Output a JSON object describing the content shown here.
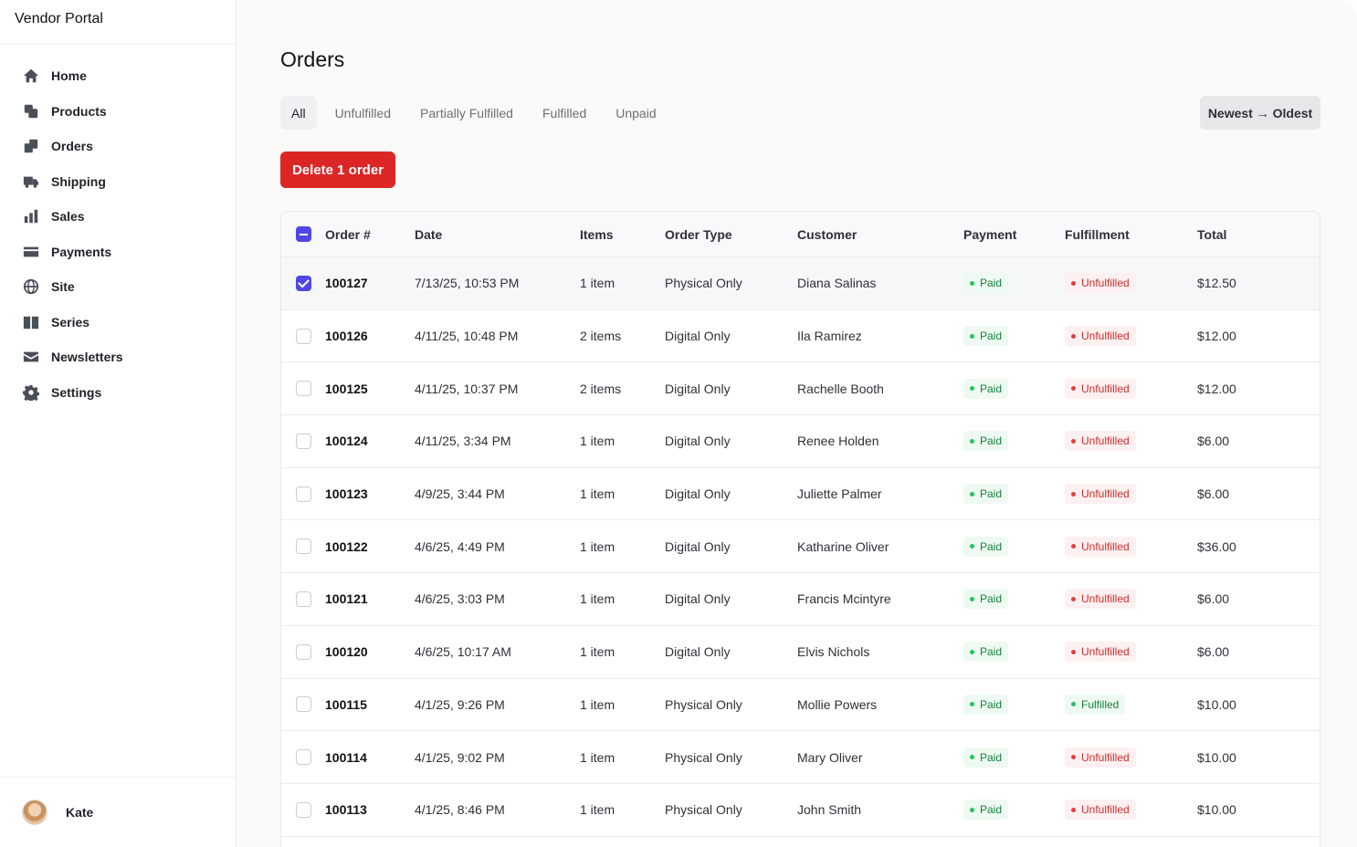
{
  "app": {
    "title": "Vendor Portal"
  },
  "sidebar": {
    "items": [
      {
        "label": "Home",
        "icon": "home-icon"
      },
      {
        "label": "Products",
        "icon": "products-icon"
      },
      {
        "label": "Orders",
        "icon": "orders-icon"
      },
      {
        "label": "Shipping",
        "icon": "truck-icon"
      },
      {
        "label": "Sales",
        "icon": "bar-chart-icon"
      },
      {
        "label": "Payments",
        "icon": "credit-card-icon"
      },
      {
        "label": "Site",
        "icon": "globe-icon"
      },
      {
        "label": "Series",
        "icon": "book-icon"
      },
      {
        "label": "Newsletters",
        "icon": "envelope-icon"
      },
      {
        "label": "Settings",
        "icon": "gear-icon"
      }
    ],
    "user": {
      "name": "Kate"
    }
  },
  "main": {
    "title": "Orders",
    "tabs": [
      {
        "label": "All",
        "active": true
      },
      {
        "label": "Unfulfilled",
        "active": false
      },
      {
        "label": "Partially Fulfilled",
        "active": false
      },
      {
        "label": "Fulfilled",
        "active": false
      },
      {
        "label": "Unpaid",
        "active": false
      }
    ],
    "sort_label": "Newest → Oldest",
    "delete_label": "Delete 1 order",
    "table": {
      "columns": [
        "Order #",
        "Date",
        "Items",
        "Order Type",
        "Customer",
        "Payment",
        "Fulfillment",
        "Total"
      ],
      "rows": [
        {
          "order": "100127",
          "date": "7/13/25, 10:53 PM",
          "items": "1 item",
          "type": "Physical Only",
          "customer": "Diana Salinas",
          "payment": "Paid",
          "fulfillment": "Unfulfilled",
          "total": "$12.50",
          "checked": true
        },
        {
          "order": "100126",
          "date": "4/11/25, 10:48 PM",
          "items": "2 items",
          "type": "Digital Only",
          "customer": "Ila Ramirez",
          "payment": "Paid",
          "fulfillment": "Unfulfilled",
          "total": "$12.00",
          "checked": false
        },
        {
          "order": "100125",
          "date": "4/11/25, 10:37 PM",
          "items": "2 items",
          "type": "Digital Only",
          "customer": "Rachelle Booth",
          "payment": "Paid",
          "fulfillment": "Unfulfilled",
          "total": "$12.00",
          "checked": false
        },
        {
          "order": "100124",
          "date": "4/11/25, 3:34 PM",
          "items": "1 item",
          "type": "Digital Only",
          "customer": "Renee Holden",
          "payment": "Paid",
          "fulfillment": "Unfulfilled",
          "total": "$6.00",
          "checked": false
        },
        {
          "order": "100123",
          "date": "4/9/25, 3:44 PM",
          "items": "1 item",
          "type": "Digital Only",
          "customer": "Juliette Palmer",
          "payment": "Paid",
          "fulfillment": "Unfulfilled",
          "total": "$6.00",
          "checked": false
        },
        {
          "order": "100122",
          "date": "4/6/25, 4:49 PM",
          "items": "1 item",
          "type": "Digital Only",
          "customer": "Katharine Oliver",
          "payment": "Paid",
          "fulfillment": "Unfulfilled",
          "total": "$36.00",
          "checked": false
        },
        {
          "order": "100121",
          "date": "4/6/25, 3:03 PM",
          "items": "1 item",
          "type": "Digital Only",
          "customer": "Francis Mcintyre",
          "payment": "Paid",
          "fulfillment": "Unfulfilled",
          "total": "$6.00",
          "checked": false
        },
        {
          "order": "100120",
          "date": "4/6/25, 10:17 AM",
          "items": "1 item",
          "type": "Digital Only",
          "customer": "Elvis Nichols",
          "payment": "Paid",
          "fulfillment": "Unfulfilled",
          "total": "$6.00",
          "checked": false
        },
        {
          "order": "100115",
          "date": "4/1/25, 9:26 PM",
          "items": "1 item",
          "type": "Physical Only",
          "customer": "Mollie Powers",
          "payment": "Paid",
          "fulfillment": "Fulfilled",
          "total": "$10.00",
          "checked": false
        },
        {
          "order": "100114",
          "date": "4/1/25, 9:02 PM",
          "items": "1 item",
          "type": "Physical Only",
          "customer": "Mary Oliver",
          "payment": "Paid",
          "fulfillment": "Unfulfilled",
          "total": "$10.00",
          "checked": false
        },
        {
          "order": "100113",
          "date": "4/1/25, 8:46 PM",
          "items": "1 item",
          "type": "Physical Only",
          "customer": "John Smith",
          "payment": "Paid",
          "fulfillment": "Unfulfilled",
          "total": "$10.00",
          "checked": false
        }
      ]
    }
  },
  "colors": {
    "accent": "#4f46e5",
    "danger": "#dc2626",
    "success": "#22c55e"
  }
}
